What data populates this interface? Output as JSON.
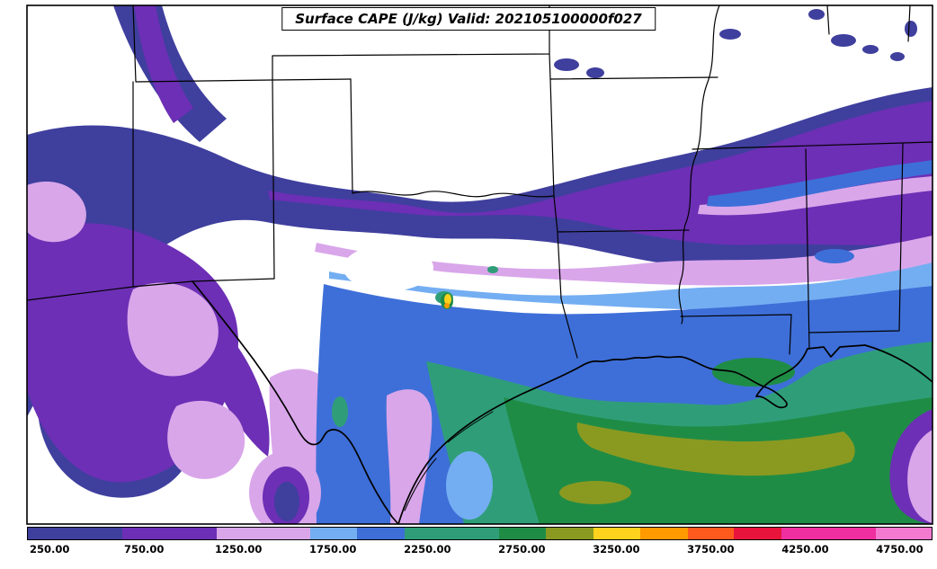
{
  "title": "Surface CAPE (J/kg) Valid: 202105100000f027",
  "palette": {
    "white": "#ffffff",
    "outline": "#000000",
    "c250": "#3f3f9e",
    "c750": "#6d2fb5",
    "c1250": "#d9a6ea",
    "c1750": "#74aef2",
    "c2000": "#3e6fd8",
    "c2250": "#2f9e78",
    "c2750": "#1f8c46",
    "c3250": "#8a9a20",
    "c3500": "#ffd21e",
    "c3750": "#ff9a00",
    "c4000": "#ff5a1e",
    "c4250": "#e8143c",
    "c4500": "#ef2f9f",
    "c4750": "#f47ad0"
  },
  "colorbar": {
    "ticks": [
      {
        "label": "250.00",
        "pos": 2.5
      },
      {
        "label": "750.00",
        "pos": 12.93
      },
      {
        "label": "1250.00",
        "pos": 23.36
      },
      {
        "label": "1750.00",
        "pos": 33.79
      },
      {
        "label": "2250.00",
        "pos": 44.22
      },
      {
        "label": "2750.00",
        "pos": 54.65
      },
      {
        "label": "3250.00",
        "pos": 65.08
      },
      {
        "label": "3750.00",
        "pos": 75.51
      },
      {
        "label": "4250.00",
        "pos": 85.94
      },
      {
        "label": "4750.00",
        "pos": 96.37
      }
    ],
    "segments": [
      {
        "color": "#3f3f9e",
        "w": 10.43
      },
      {
        "color": "#6d2fb5",
        "w": 10.43
      },
      {
        "color": "#d9a6ea",
        "w": 10.43
      },
      {
        "color": "#74aef2",
        "w": 5.17
      },
      {
        "color": "#3e6fd8",
        "w": 5.26
      },
      {
        "color": "#2f9e78",
        "w": 10.43
      },
      {
        "color": "#1f8c46",
        "w": 5.16
      },
      {
        "color": "#8a9a20",
        "w": 5.26
      },
      {
        "color": "#ffd21e",
        "w": 5.17
      },
      {
        "color": "#ff9a00",
        "w": 5.26
      },
      {
        "color": "#ff5a1e",
        "w": 5.16
      },
      {
        "color": "#e8143c",
        "w": 5.27
      },
      {
        "color": "#ef2f9f",
        "w": 10.42
      },
      {
        "color": "#f47ad0",
        "w": 6.15
      }
    ]
  },
  "chart_data": {
    "type": "heatmap",
    "title": "Surface CAPE (J/kg) Valid: 202105100000f027",
    "variable": "Surface CAPE",
    "units": "J/kg",
    "valid_time": "202105100000f027",
    "region": "South-central United States and northwest Gulf of Mexico",
    "colorbar": {
      "tick_values": [
        250,
        750,
        1250,
        1750,
        2250,
        2750,
        3250,
        3750,
        4250,
        4750
      ],
      "tick_labels": [
        "250.00",
        "750.00",
        "1250.00",
        "1750.00",
        "2250.00",
        "2750.00",
        "3250.00",
        "3750.00",
        "4250.00",
        "4750.00"
      ],
      "levels": [
        {
          "value": 250,
          "color": "#3f3f9e"
        },
        {
          "value": 750,
          "color": "#6d2fb5"
        },
        {
          "value": 1250,
          "color": "#d9a6ea"
        },
        {
          "value": 1750,
          "color": "#74aef2"
        },
        {
          "value": 2000,
          "color": "#3e6fd8"
        },
        {
          "value": 2250,
          "color": "#2f9e78"
        },
        {
          "value": 2750,
          "color": "#1f8c46"
        },
        {
          "value": 3250,
          "color": "#8a9a20"
        },
        {
          "value": 3500,
          "color": "#ffd21e"
        },
        {
          "value": 3750,
          "color": "#ff9a00"
        },
        {
          "value": 4000,
          "color": "#ff5a1e"
        },
        {
          "value": 4250,
          "color": "#e8143c"
        },
        {
          "value": 4500,
          "color": "#ef2f9f"
        },
        {
          "value": 4750,
          "color": "#f47ad0"
        }
      ]
    },
    "regions": [
      {
        "area": "Gulf of Mexico offshore core",
        "cape_range_jkg": "2750-3750"
      },
      {
        "area": "Texas / Louisiana coastal plain and nearshore waters",
        "cape_range_jkg": "1750-2750"
      },
      {
        "area": "Elevated band from New Mexico through Oklahoma and Arkansas to Tennessee/Alabama",
        "cape_range_jkg": "250-1250"
      },
      {
        "area": "Central Texas localized maximum (small yellow/orange speck)",
        "cape_range_jkg": "3250-3750"
      },
      {
        "area": "Interior Plains / mid-South gaps",
        "cape_range_jkg": "< 250 (unshaded)"
      }
    ]
  }
}
